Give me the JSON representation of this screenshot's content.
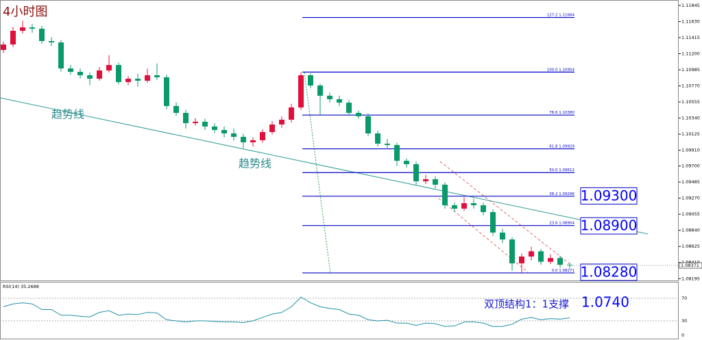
{
  "chart_data": {
    "type": "candlestick",
    "title": "4小时图",
    "up_color": "#e0103c",
    "down_color": "#0a9a6a",
    "open": [
      1.1125,
      1.11323,
      1.11506,
      1.11552,
      1.11534,
      1.11369,
      1.11351,
      1.11003,
      1.10958,
      1.10912,
      1.10866,
      1.10976,
      1.11049,
      1.10821,
      1.10866,
      1.10839,
      1.10912,
      1.10885,
      1.10501,
      1.10409,
      1.10272,
      1.10291,
      1.10227,
      1.10181,
      1.10135,
      1.10089,
      1.10016,
      1.10044,
      1.10153,
      1.10254,
      1.10318,
      1.10482,
      1.10912,
      1.10775,
      1.10638,
      1.10592,
      1.10546,
      1.10409,
      1.10364,
      1.10135,
      1.09998,
      1.0998,
      1.09769,
      1.09724,
      1.09495,
      1.09523,
      1.0945,
      1.09175,
      1.0913,
      1.09203,
      1.09175,
      1.09084,
      1.0881,
      1.08718,
      1.08399,
      1.0849,
      1.0856,
      1.0842,
      1.0847,
      1.0838
    ],
    "high": [
      1.1136,
      1.1156,
      1.1164,
      1.116,
      1.1157,
      1.1142,
      1.1138,
      1.1105,
      1.11,
      1.1095,
      1.1102,
      1.1118,
      1.1108,
      1.109,
      1.1093,
      1.11,
      1.1107,
      1.1092,
      1.1055,
      1.1045,
      1.1034,
      1.1033,
      1.1027,
      1.1023,
      1.102,
      1.1013,
      1.1008,
      1.1019,
      1.103,
      1.1036,
      1.1053,
      1.10954,
      1.1094,
      1.108,
      1.1068,
      1.1064,
      1.1058,
      1.1044,
      1.104,
      1.1017,
      1.1006,
      1.1001,
      1.098,
      1.0976,
      1.0958,
      1.0956,
      1.0948,
      1.0921,
      1.0928,
      1.0926,
      1.0921,
      1.0912,
      1.0886,
      1.0875,
      1.0853,
      1.0862,
      1.0859,
      1.0852,
      1.085,
      1.0841
    ],
    "low": [
      1.1121,
      1.1129,
      1.1147,
      1.1148,
      1.1133,
      1.113,
      1.1096,
      1.1092,
      1.1087,
      1.1078,
      1.1084,
      1.1095,
      1.1079,
      1.1078,
      1.1076,
      1.1081,
      1.1085,
      1.1046,
      1.1037,
      1.102,
      1.1024,
      1.1018,
      1.1014,
      1.1008,
      1.1004,
      1.0994,
      1.0996,
      1.1001,
      1.1012,
      1.1021,
      1.1028,
      1.1045,
      1.1074,
      1.1038,
      1.1055,
      1.105,
      1.1037,
      1.1033,
      1.101,
      1.0996,
      1.0994,
      1.097,
      1.0968,
      1.0945,
      1.0946,
      1.094,
      1.0913,
      1.0909,
      1.091,
      1.0913,
      1.0904,
      1.0877,
      1.0867,
      1.083,
      1.08271,
      1.0844,
      1.0838,
      1.0839,
      1.0834,
      1.0833
    ],
    "close": [
      1.11323,
      1.11506,
      1.11552,
      1.11534,
      1.11369,
      1.11351,
      1.11003,
      1.10958,
      1.10912,
      1.10866,
      1.10976,
      1.11049,
      1.10821,
      1.10866,
      1.10839,
      1.10912,
      1.10885,
      1.10501,
      1.10409,
      1.10272,
      1.10291,
      1.10227,
      1.10181,
      1.10135,
      1.10089,
      1.10016,
      1.10044,
      1.10153,
      1.10254,
      1.10318,
      1.10482,
      1.10912,
      1.10775,
      1.10638,
      1.10592,
      1.10546,
      1.10409,
      1.10364,
      1.10135,
      1.09998,
      1.0998,
      1.09769,
      1.09724,
      1.09495,
      1.09523,
      1.0945,
      1.09175,
      1.0913,
      1.09203,
      1.09175,
      1.09084,
      1.0881,
      1.08718,
      1.08399,
      1.0849,
      1.0856,
      1.0842,
      1.0847,
      1.0838,
      1.08371
    ],
    "last_price": 1.08371,
    "ylim": [
      1.0817,
      1.1189
    ],
    "yticks": [
      1.11845,
      {
        "value": 1.1163,
        "label": "1.11630"
      },
      1.11415,
      {
        "value": 1.112,
        "label": "1.11200"
      },
      1.10985,
      {
        "value": 1.1077,
        "label": "1.10770"
      },
      1.10555,
      {
        "value": 1.1034,
        "label": "1.10340"
      },
      1.10125,
      {
        "value": 1.0991,
        "label": "1.09910"
      },
      {
        "value": 1.097,
        "label": "1.09700"
      },
      1.09485,
      {
        "value": 1.0927,
        "label": "1.09270"
      },
      1.09055,
      {
        "value": 1.0884,
        "label": "1.08840"
      },
      1.08625,
      {
        "value": 1.0841,
        "label": "1.08410"
      },
      1.08195
    ],
    "fib_levels": [
      {
        "ratio": "127.2",
        "price": 1.11684
      },
      {
        "ratio": "100.0",
        "price": 1.10954
      },
      {
        "ratio": "78.6",
        "price": {
          "value": 1.1038,
          "label": "1.10380"
        }
      },
      {
        "ratio": "61.8",
        "price": 1.09929
      },
      {
        "ratio": "50.0",
        "price": 1.09612
      },
      {
        "ratio": "38.2",
        "price": 1.09296
      },
      {
        "ratio": "23.6",
        "price": 1.08904
      },
      {
        "ratio": "0.0",
        "price": 1.08271
      }
    ],
    "fib_color": "#0000c8",
    "level_boxes": [
      {
        "value": 1.093,
        "label": "1.09300"
      },
      {
        "value": 1.089,
        "label": "1.08900"
      },
      {
        "value": 1.0828,
        "label": "1.08280"
      }
    ],
    "trend_labels": [
      "趋势线",
      "趋势线"
    ],
    "annotation": "双顶结构1：1支撑",
    "annotation_level": "1.0740",
    "rsi": {
      "name": "RSI(14)",
      "color": "#1e8fa8",
      "ylim": [
        0,
        100
      ],
      "yticks": [
        70,
        30,
        0
      ],
      "values": [
        55,
        60,
        62,
        60,
        50,
        50,
        40,
        40,
        38,
        37,
        45,
        48,
        40,
        42,
        41,
        45,
        44,
        32,
        30,
        28,
        30,
        30,
        29,
        28,
        28,
        27,
        30,
        36,
        42,
        45,
        55,
        72,
        62,
        55,
        52,
        50,
        42,
        40,
        32,
        30,
        31,
        26,
        26,
        22,
        26,
        25,
        20,
        21,
        28,
        28,
        26,
        20,
        20,
        24,
        33,
        36,
        32,
        34,
        33,
        35.2688
      ]
    }
  }
}
